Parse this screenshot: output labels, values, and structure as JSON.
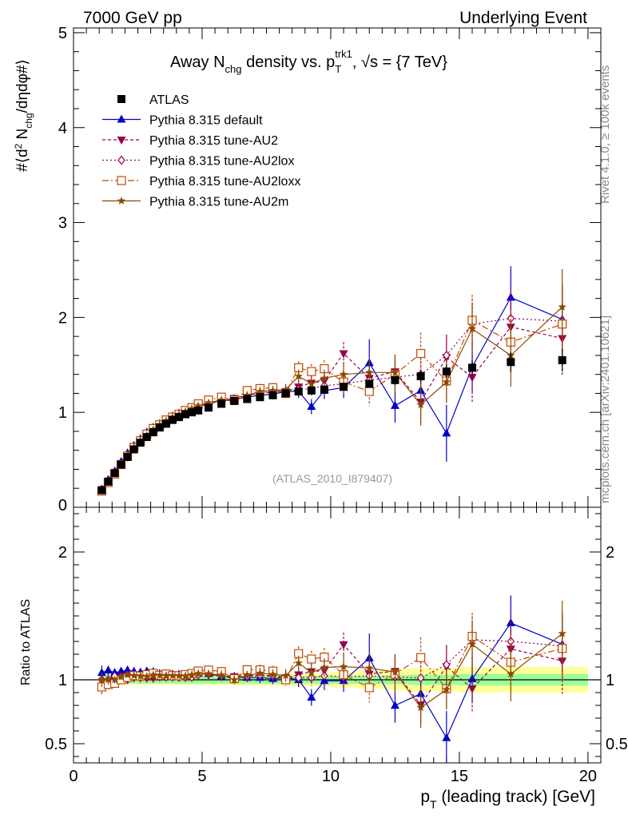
{
  "header": {
    "left": "7000 GeV pp",
    "right": "Underlying Event",
    "side_rivet": "Rivet 4.1.0, ≥ 100k events",
    "side_mcplots": "mcplots.cern.ch [arXiv:2401.10621]"
  },
  "title": {
    "prefix": "Away N",
    "sub1": "chg",
    "mid": " density vs. p",
    "sub2": "T",
    "sup2": "trk1",
    "suffix": ", √s = {7 TeV}"
  },
  "ylabel_main": "#⟨d² N_chg/dηdφ#⟩",
  "ylabel_ratio": "Ratio to ATLAS",
  "xlabel": "p_T (leading track) [GeV]",
  "watermark": "(ATLAS_2010_I879407)",
  "legend": [
    {
      "label": "ATLAS",
      "color": "#000000",
      "marker": "square-filled"
    },
    {
      "label": "Pythia 8.315 default",
      "color": "#0000cc",
      "marker": "triangle-up"
    },
    {
      "label": "Pythia 8.315 tune-AU2",
      "color": "#99004d",
      "marker": "triangle-down"
    },
    {
      "label": "Pythia 8.315 tune-AU2lox",
      "color": "#99004d",
      "marker": "diamond-open"
    },
    {
      "label": "Pythia 8.315 tune-AU2loxx",
      "color": "#c04a00",
      "marker": "square-open"
    },
    {
      "label": "Pythia 8.315 tune-AU2m",
      "color": "#8b4a00",
      "marker": "star"
    }
  ],
  "chart_data": {
    "type": "scatter",
    "xlim": [
      0,
      20.5
    ],
    "ylim_main": [
      0,
      5.05
    ],
    "ylim_ratio": [
      0.35,
      2.35
    ],
    "x_ticks": [
      "0",
      "5",
      "10",
      "15",
      "20"
    ],
    "y_ticks_main": [
      "0",
      "1",
      "2",
      "3",
      "4",
      "5"
    ],
    "y_ticks_ratio": [
      "0.5",
      "1",
      "2"
    ],
    "x": [
      1.1,
      1.35,
      1.6,
      1.85,
      2.1,
      2.35,
      2.6,
      2.85,
      3.1,
      3.35,
      3.6,
      3.85,
      4.1,
      4.35,
      4.6,
      4.85,
      5.25,
      5.75,
      6.25,
      6.75,
      7.25,
      7.75,
      8.25,
      8.75,
      9.25,
      9.75,
      10.5,
      11.5,
      12.5,
      13.5,
      14.5,
      15.5,
      17.0,
      19.0
    ],
    "series": [
      {
        "name": "ATLAS",
        "values": [
          0.18,
          0.27,
          0.36,
          0.45,
          0.53,
          0.61,
          0.68,
          0.74,
          0.79,
          0.84,
          0.88,
          0.92,
          0.95,
          0.98,
          1.0,
          1.02,
          1.05,
          1.09,
          1.12,
          1.14,
          1.16,
          1.18,
          1.2,
          1.22,
          1.23,
          1.24,
          1.27,
          1.3,
          1.34,
          1.38,
          1.43,
          1.47,
          1.53,
          1.55
        ],
        "errors": [
          0.01,
          0.01,
          0.01,
          0.01,
          0.01,
          0.01,
          0.01,
          0.01,
          0.01,
          0.01,
          0.01,
          0.01,
          0.01,
          0.01,
          0.01,
          0.01,
          0.01,
          0.01,
          0.01,
          0.02,
          0.02,
          0.02,
          0.02,
          0.03,
          0.03,
          0.03,
          0.04,
          0.04,
          0.05,
          0.06,
          0.07,
          0.08,
          0.1,
          0.12
        ]
      },
      {
        "name": "Pythia 8.315 default",
        "values": [
          0.19,
          0.29,
          0.38,
          0.48,
          0.57,
          0.65,
          0.72,
          0.79,
          0.84,
          0.88,
          0.92,
          0.96,
          0.99,
          1.02,
          1.04,
          1.07,
          1.1,
          1.12,
          1.14,
          1.16,
          1.18,
          1.19,
          1.22,
          1.22,
          1.06,
          1.23,
          1.26,
          1.52,
          1.07,
          1.23,
          0.78,
          1.48,
          2.21,
          1.98
        ],
        "errors": [
          0.01,
          0.01,
          0.01,
          0.01,
          0.01,
          0.01,
          0.02,
          0.02,
          0.02,
          0.02,
          0.02,
          0.02,
          0.02,
          0.02,
          0.03,
          0.03,
          0.03,
          0.03,
          0.04,
          0.04,
          0.05,
          0.05,
          0.06,
          0.07,
          0.08,
          0.09,
          0.11,
          0.25,
          0.18,
          0.22,
          0.3,
          0.27,
          0.33,
          0.35
        ]
      },
      {
        "name": "Pythia 8.315 tune-AU2",
        "values": [
          0.17,
          0.26,
          0.36,
          0.45,
          0.53,
          0.62,
          0.69,
          0.75,
          0.8,
          0.86,
          0.9,
          0.94,
          0.97,
          1.0,
          1.03,
          1.06,
          1.09,
          1.12,
          1.15,
          1.18,
          1.2,
          1.21,
          1.22,
          1.27,
          1.31,
          1.33,
          1.62,
          1.36,
          1.43,
          1.11,
          1.58,
          1.37,
          1.9,
          1.78
        ],
        "errors": [
          0.01,
          0.01,
          0.01,
          0.01,
          0.01,
          0.01,
          0.02,
          0.02,
          0.02,
          0.02,
          0.02,
          0.02,
          0.02,
          0.03,
          0.03,
          0.03,
          0.03,
          0.04,
          0.04,
          0.04,
          0.05,
          0.05,
          0.06,
          0.07,
          0.08,
          0.09,
          0.12,
          0.15,
          0.18,
          0.22,
          0.22,
          0.27,
          0.33,
          0.4
        ]
      },
      {
        "name": "Pythia 8.315 tune-AU2lox",
        "values": [
          0.18,
          0.27,
          0.37,
          0.46,
          0.55,
          0.63,
          0.7,
          0.77,
          0.82,
          0.86,
          0.9,
          0.94,
          0.97,
          1.0,
          1.02,
          1.06,
          1.1,
          1.13,
          1.14,
          1.17,
          1.2,
          1.22,
          1.22,
          1.24,
          1.25,
          1.28,
          1.3,
          1.34,
          1.37,
          1.4,
          1.6,
          1.93,
          1.99,
          1.96
        ],
        "errors": [
          0.01,
          0.01,
          0.01,
          0.01,
          0.01,
          0.01,
          0.02,
          0.02,
          0.02,
          0.02,
          0.02,
          0.02,
          0.02,
          0.03,
          0.03,
          0.03,
          0.03,
          0.04,
          0.04,
          0.04,
          0.05,
          0.05,
          0.06,
          0.07,
          0.08,
          0.09,
          0.12,
          0.15,
          0.18,
          0.22,
          0.22,
          0.27,
          0.33,
          0.4
        ]
      },
      {
        "name": "Pythia 8.315 tune-AU2loxx",
        "values": [
          0.17,
          0.26,
          0.35,
          0.45,
          0.54,
          0.63,
          0.7,
          0.77,
          0.83,
          0.87,
          0.92,
          0.95,
          0.98,
          1.02,
          1.05,
          1.09,
          1.13,
          1.16,
          1.13,
          1.23,
          1.25,
          1.26,
          1.2,
          1.47,
          1.43,
          1.46,
          1.32,
          1.22,
          1.4,
          1.62,
          1.33,
          1.97,
          1.74,
          1.93
        ],
        "errors": [
          0.01,
          0.01,
          0.01,
          0.01,
          0.01,
          0.01,
          0.02,
          0.02,
          0.02,
          0.02,
          0.02,
          0.02,
          0.02,
          0.03,
          0.03,
          0.03,
          0.03,
          0.04,
          0.04,
          0.04,
          0.05,
          0.05,
          0.06,
          0.07,
          0.08,
          0.09,
          0.12,
          0.15,
          0.18,
          0.22,
          0.22,
          0.27,
          0.33,
          0.4
        ]
      },
      {
        "name": "Pythia 8.315 tune-AU2m",
        "values": [
          0.18,
          0.27,
          0.36,
          0.46,
          0.55,
          0.63,
          0.7,
          0.76,
          0.82,
          0.87,
          0.91,
          0.95,
          0.98,
          1.01,
          1.04,
          1.07,
          1.1,
          1.13,
          1.12,
          1.18,
          1.22,
          1.23,
          1.24,
          1.38,
          1.3,
          1.36,
          1.4,
          1.42,
          1.42,
          1.08,
          1.32,
          1.88,
          1.6,
          2.11
        ],
        "errors": [
          0.01,
          0.01,
          0.01,
          0.01,
          0.01,
          0.01,
          0.02,
          0.02,
          0.02,
          0.02,
          0.02,
          0.02,
          0.02,
          0.03,
          0.03,
          0.03,
          0.03,
          0.04,
          0.04,
          0.04,
          0.05,
          0.05,
          0.06,
          0.07,
          0.08,
          0.09,
          0.12,
          0.15,
          0.18,
          0.22,
          0.22,
          0.27,
          0.33,
          0.4
        ]
      }
    ],
    "ratio_bands": {
      "edges": [
        1.0,
        1.25,
        1.5,
        1.75,
        2.0,
        2.25,
        2.5,
        2.75,
        3.0,
        3.25,
        3.5,
        3.75,
        4.0,
        4.25,
        4.5,
        4.75,
        5.0,
        5.5,
        6.0,
        6.5,
        7.0,
        7.5,
        8.0,
        8.5,
        9.0,
        9.5,
        10.0,
        11.0,
        12.0,
        13.0,
        14.0,
        15.0,
        16.0,
        18.0,
        20.0
      ],
      "inner": [
        0.04,
        0.035,
        0.03,
        0.03,
        0.03,
        0.03,
        0.03,
        0.03,
        0.03,
        0.03,
        0.03,
        0.03,
        0.03,
        0.03,
        0.03,
        0.03,
        0.03,
        0.03,
        0.03,
        0.03,
        0.03,
        0.03,
        0.03,
        0.03,
        0.03,
        0.03,
        0.03,
        0.03,
        0.035,
        0.04,
        0.04,
        0.045,
        0.045,
        0.045
      ],
      "outer": [
        0.07,
        0.05,
        0.045,
        0.04,
        0.04,
        0.04,
        0.04,
        0.04,
        0.04,
        0.04,
        0.04,
        0.04,
        0.04,
        0.04,
        0.04,
        0.04,
        0.04,
        0.04,
        0.04,
        0.045,
        0.045,
        0.045,
        0.045,
        0.05,
        0.05,
        0.05,
        0.06,
        0.07,
        0.08,
        0.09,
        0.09,
        0.1,
        0.1,
        0.1
      ]
    }
  }
}
